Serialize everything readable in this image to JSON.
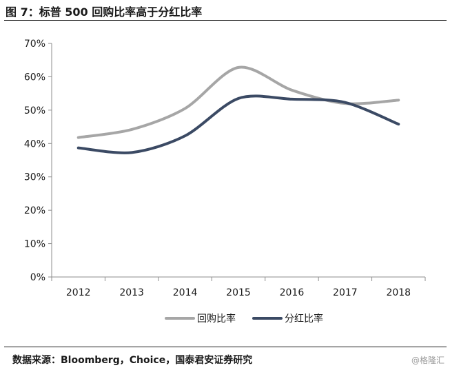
{
  "figure": {
    "title": "图 7：标普 500 回购比率高于分红比率",
    "source": "数据来源：Bloomberg，Choice，国泰君安证券研究",
    "watermark": "@格隆汇"
  },
  "chart_data": {
    "type": "line",
    "title": "",
    "xlabel": "",
    "ylabel": "",
    "x": [
      "2012",
      "2013",
      "2014",
      "2015",
      "2016",
      "2017",
      "2018"
    ],
    "ylim": [
      0,
      70
    ],
    "yticks": [
      "0%",
      "10%",
      "20%",
      "30%",
      "40%",
      "50%",
      "60%",
      "70%"
    ],
    "grid": false,
    "legend_position": "bottom",
    "series": [
      {
        "name": "回购比率",
        "color": "#a6a6a6",
        "values": [
          41.8,
          44.2,
          50.5,
          62.8,
          56.0,
          52.0,
          53.0
        ]
      },
      {
        "name": "分红比率",
        "color": "#3b4a64",
        "values": [
          38.7,
          37.3,
          42.3,
          53.5,
          53.3,
          52.3,
          45.8
        ]
      }
    ]
  }
}
